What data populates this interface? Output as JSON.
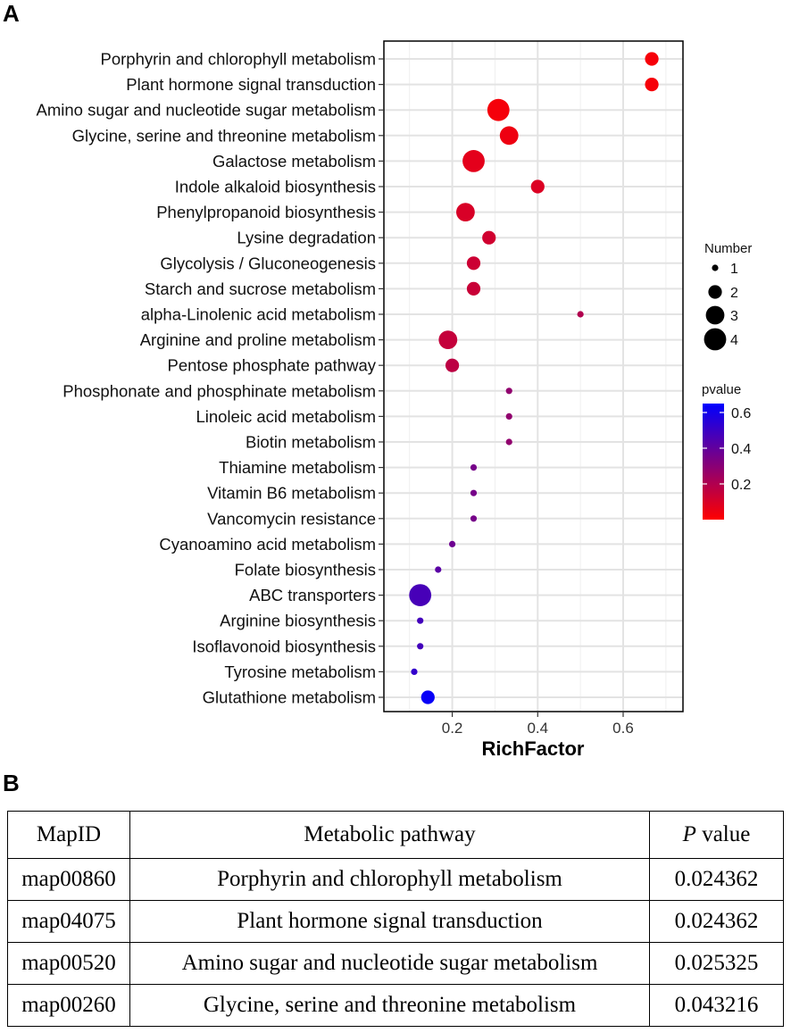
{
  "panels": {
    "a_label": "A",
    "b_label": "B"
  },
  "chart_data": {
    "type": "scatter",
    "xlabel": "RichFactor",
    "ylabel": "",
    "xlim": [
      0.04,
      0.74
    ],
    "xticks": [
      0.2,
      0.4,
      0.6
    ],
    "xtick_labels": [
      "0.2",
      "0.4",
      "0.6"
    ],
    "grid": true,
    "categories": [
      "Porphyrin and chlorophyll metabolism",
      "Plant hormone signal transduction",
      "Amino sugar and nucleotide sugar metabolism",
      "Glycine, serine and threonine metabolism",
      "Galactose metabolism",
      "Indole alkaloid biosynthesis",
      "Phenylpropanoid biosynthesis",
      "Lysine degradation",
      "Glycolysis / Gluconeogenesis",
      "Starch and sucrose metabolism",
      "alpha-Linolenic acid metabolism",
      "Arginine and proline metabolism",
      "Pentose phosphate pathway",
      "Phosphonate and phosphinate metabolism",
      "Linoleic acid metabolism",
      "Biotin metabolism",
      "Thiamine metabolism",
      "Vitamin B6 metabolism",
      "Vancomycin resistance",
      "Cyanoamino acid metabolism",
      "Folate biosynthesis",
      "ABC transporters",
      "Arginine biosynthesis",
      "Isoflavonoid biosynthesis",
      "Tyrosine metabolism",
      "Glutathione metabolism"
    ],
    "rich_factor": [
      0.667,
      0.667,
      0.308,
      0.333,
      0.25,
      0.4,
      0.231,
      0.286,
      0.25,
      0.25,
      0.5,
      0.19,
      0.2,
      0.333,
      0.333,
      0.333,
      0.25,
      0.25,
      0.25,
      0.2,
      0.167,
      0.125,
      0.125,
      0.125,
      0.111,
      0.143
    ],
    "number": [
      2,
      2,
      4,
      3,
      4,
      2,
      3,
      2,
      2,
      2,
      1,
      3,
      2,
      1,
      1,
      1,
      1,
      1,
      1,
      1,
      1,
      4,
      1,
      1,
      1,
      2
    ],
    "pvalue": [
      0.024,
      0.024,
      0.025,
      0.043,
      0.07,
      0.09,
      0.1,
      0.12,
      0.13,
      0.14,
      0.2,
      0.15,
      0.17,
      0.28,
      0.28,
      0.28,
      0.35,
      0.35,
      0.35,
      0.37,
      0.42,
      0.47,
      0.48,
      0.48,
      0.52,
      0.63
    ],
    "legend_size": {
      "title": "Number",
      "values": [
        1,
        2,
        3,
        4
      ],
      "labels": [
        "1",
        "2",
        "3",
        "4"
      ]
    },
    "legend_color": {
      "title": "pvalue",
      "min": 0.0,
      "max": 0.65,
      "ticks": [
        0.2,
        0.4,
        0.6
      ],
      "tick_labels": [
        "0.2",
        "0.4",
        "0.6"
      ],
      "low_color": "#ff0000",
      "high_color": "#0000ff"
    }
  },
  "table": {
    "headers": {
      "mapid": "MapID",
      "pathway": "Metabolic pathway",
      "p_italic": "P",
      "p_rest": " value"
    },
    "rows": [
      {
        "mapid": "map00860",
        "pathway": "Porphyrin and chlorophyll metabolism",
        "pvalue": "0.024362"
      },
      {
        "mapid": "map04075",
        "pathway": "Plant hormone signal transduction",
        "pvalue": "0.024362"
      },
      {
        "mapid": "map00520",
        "pathway": "Amino sugar and nucleotide sugar metabolism",
        "pvalue": "0.025325"
      },
      {
        "mapid": "map00260",
        "pathway": "Glycine, serine and threonine metabolism",
        "pvalue": "0.043216"
      }
    ]
  }
}
